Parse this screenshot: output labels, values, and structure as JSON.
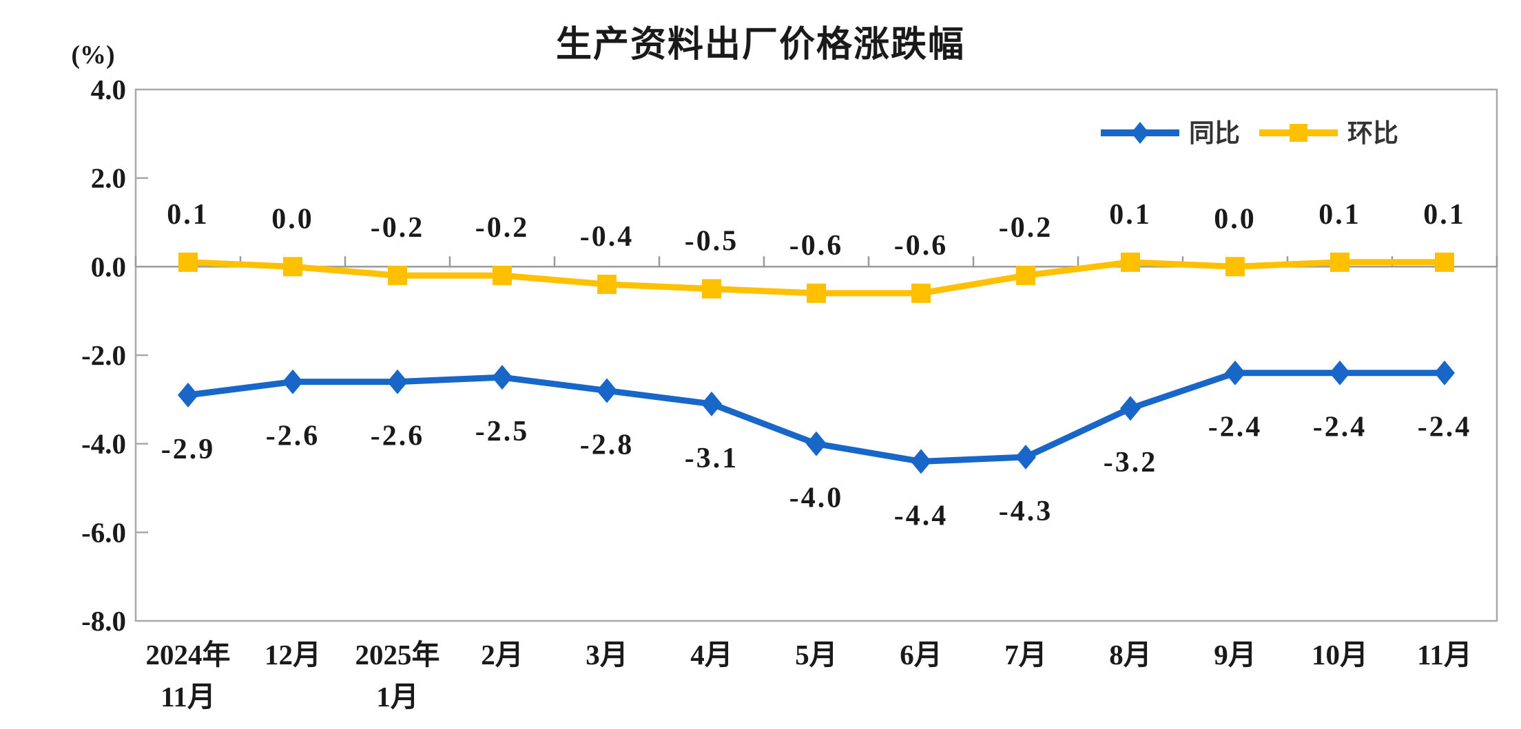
{
  "page": {
    "background": "#ffffff"
  },
  "chart_data": {
    "type": "line",
    "title": "生产资料出厂价格涨跌幅",
    "unit_label": "(%)",
    "categories": [
      "2024年\n11月",
      "12月",
      "2025年\n1月",
      "2月",
      "3月",
      "4月",
      "5月",
      "6月",
      "7月",
      "8月",
      "9月",
      "10月",
      "11月"
    ],
    "series": [
      {
        "id": "yoy",
        "name": "同比",
        "color": "#1766C8",
        "marker": "diamond",
        "label_position": "below",
        "values": [
          -2.9,
          -2.6,
          -2.6,
          -2.5,
          -2.8,
          -3.1,
          -4.0,
          -4.4,
          -4.3,
          -3.2,
          -2.4,
          -2.4,
          -2.4
        ],
        "labels": [
          "-2.9",
          "-2.6",
          "-2.6",
          "-2.5",
          "-2.8",
          "-3.1",
          "-4.0",
          "-4.4",
          "-4.3",
          "-3.2",
          "-2.4",
          "-2.4",
          "-2.4"
        ]
      },
      {
        "id": "mom",
        "name": "环比",
        "color": "#FFC000",
        "marker": "square",
        "label_position": "above",
        "values": [
          0.1,
          0.0,
          -0.2,
          -0.2,
          -0.4,
          -0.5,
          -0.6,
          -0.6,
          -0.2,
          0.1,
          0.0,
          0.1,
          0.1
        ],
        "labels": [
          "0.1",
          "0.0",
          "-0.2",
          "-0.2",
          "-0.4",
          "-0.5",
          "-0.6",
          "-0.6",
          "-0.2",
          "0.1",
          "0.0",
          "0.1",
          "0.1"
        ]
      }
    ],
    "y_axis": {
      "min": -8.0,
      "max": 4.0,
      "step": 2.0,
      "tick_labels": [
        "4.0",
        "2.0",
        "0.0",
        "-2.0",
        "-4.0",
        "-6.0",
        "-8.0"
      ]
    },
    "legend_position": "top-right",
    "grid": false,
    "colors": {
      "axis_border": "#A8A8A8",
      "zero_line": "#999999",
      "text": "#1a1a1a"
    }
  }
}
